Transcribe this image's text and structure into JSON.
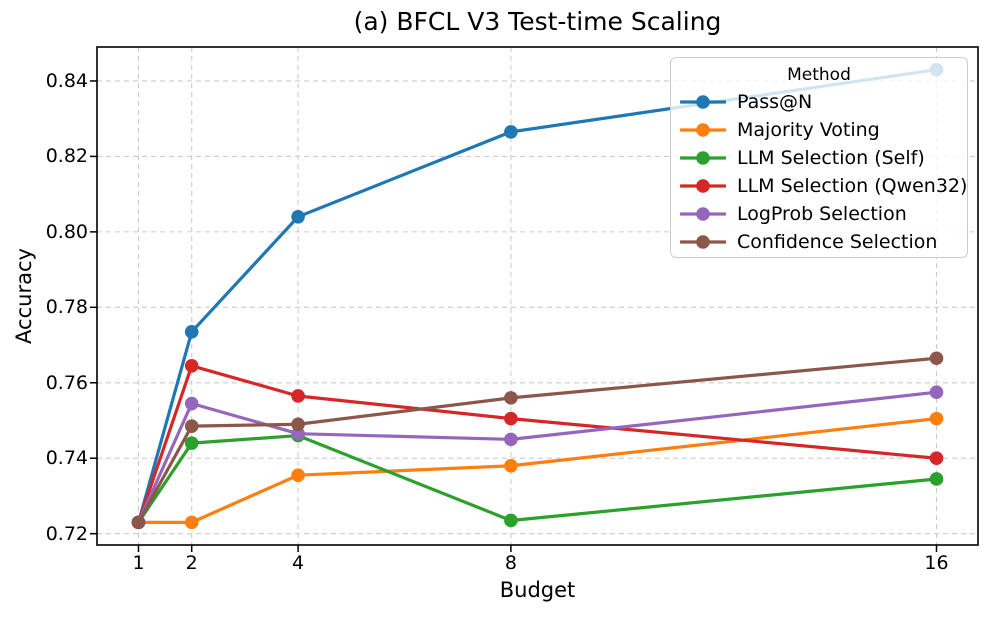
{
  "chart_data": {
    "type": "line",
    "title": "(a) BFCL V3 Test-time Scaling",
    "xlabel": "Budget",
    "ylabel": "Accuracy",
    "x": [
      1,
      2,
      4,
      8,
      16
    ],
    "x_tick_labels": [
      "1",
      "2",
      "4",
      "8",
      "16"
    ],
    "y_ticks": [
      0.72,
      0.74,
      0.76,
      0.78,
      0.8,
      0.82,
      0.84
    ],
    "y_tick_labels": [
      "0.72",
      "0.74",
      "0.76",
      "0.78",
      "0.80",
      "0.82",
      "0.84"
    ],
    "xlim": [
      0.22,
      16.78
    ],
    "ylim": [
      0.717,
      0.849
    ],
    "grid": true,
    "grid_style": "dashed",
    "legend": {
      "title": "Method",
      "position": "upper right"
    },
    "series": [
      {
        "name": "Pass@N",
        "color": "#1f77b4",
        "values": [
          0.723,
          0.7735,
          0.804,
          0.8265,
          0.843
        ]
      },
      {
        "name": "Majority Voting",
        "color": "#ff7f0e",
        "values": [
          0.723,
          0.723,
          0.7355,
          0.738,
          0.7505
        ]
      },
      {
        "name": "LLM Selection (Self)",
        "color": "#2ca02c",
        "values": [
          0.723,
          0.744,
          0.746,
          0.7235,
          0.7345
        ]
      },
      {
        "name": "LLM Selection (Qwen32)",
        "color": "#d62728",
        "values": [
          0.723,
          0.7645,
          0.7565,
          0.7505,
          0.74
        ]
      },
      {
        "name": "LogProb Selection",
        "color": "#9467bd",
        "values": [
          0.723,
          0.7545,
          0.7465,
          0.745,
          0.7575
        ]
      },
      {
        "name": "Confidence Selection",
        "color": "#8c564b",
        "values": [
          0.723,
          0.7485,
          0.749,
          0.756,
          0.7665
        ]
      }
    ],
    "colors": {
      "grid": "#cccccc",
      "spine": "#000000",
      "text": "#000000",
      "legend_border": "#cccccc"
    }
  }
}
